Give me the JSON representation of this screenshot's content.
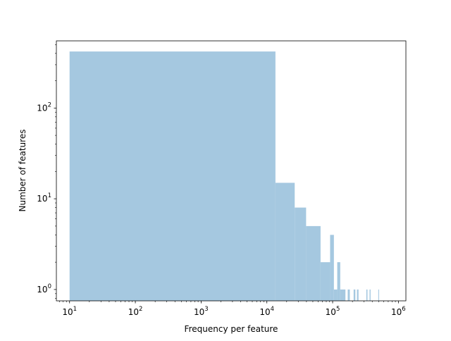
{
  "chart_data": {
    "type": "bar",
    "title": "",
    "xlabel": "Frequency per feature",
    "ylabel": "Number of features",
    "x_scale": "log",
    "y_scale": "log",
    "xlim": [
      6.3,
      1300000
    ],
    "ylim": [
      0.75,
      550
    ],
    "grid": false,
    "bar_color": "#a5c8e0",
    "x_ticks": [
      {
        "value": 10,
        "base": "10",
        "exp": "1"
      },
      {
        "value": 100,
        "base": "10",
        "exp": "2"
      },
      {
        "value": 1000,
        "base": "10",
        "exp": "3"
      },
      {
        "value": 10000,
        "base": "10",
        "exp": "4"
      },
      {
        "value": 100000,
        "base": "10",
        "exp": "5"
      },
      {
        "value": 1000000,
        "base": "10",
        "exp": "6"
      }
    ],
    "y_ticks": [
      {
        "value": 1,
        "base": "10",
        "exp": "0"
      },
      {
        "value": 10,
        "base": "10",
        "exp": "1"
      },
      {
        "value": 100,
        "base": "10",
        "exp": "2"
      }
    ],
    "bins": [
      {
        "x_start": 10,
        "x_end": 13500,
        "count": 420
      },
      {
        "x_start": 13500,
        "x_end": 26500,
        "count": 15
      },
      {
        "x_start": 26500,
        "x_end": 39500,
        "count": 8
      },
      {
        "x_start": 39500,
        "x_end": 65500,
        "count": 5
      },
      {
        "x_start": 65500,
        "x_end": 91500,
        "count": 2
      },
      {
        "x_start": 91500,
        "x_end": 104500,
        "count": 4
      },
      {
        "x_start": 104500,
        "x_end": 117500,
        "count": 1
      },
      {
        "x_start": 117500,
        "x_end": 130500,
        "count": 2
      },
      {
        "x_start": 130500,
        "x_end": 156500,
        "count": 1
      },
      {
        "x_start": 169500,
        "x_end": 182500,
        "count": 1
      },
      {
        "x_start": 208500,
        "x_end": 221500,
        "count": 1
      },
      {
        "x_start": 234500,
        "x_end": 247500,
        "count": 1
      },
      {
        "x_start": 325500,
        "x_end": 338500,
        "count": 1
      },
      {
        "x_start": 364500,
        "x_end": 377500,
        "count": 1
      },
      {
        "x_start": 494500,
        "x_end": 507500,
        "count": 1
      }
    ]
  }
}
